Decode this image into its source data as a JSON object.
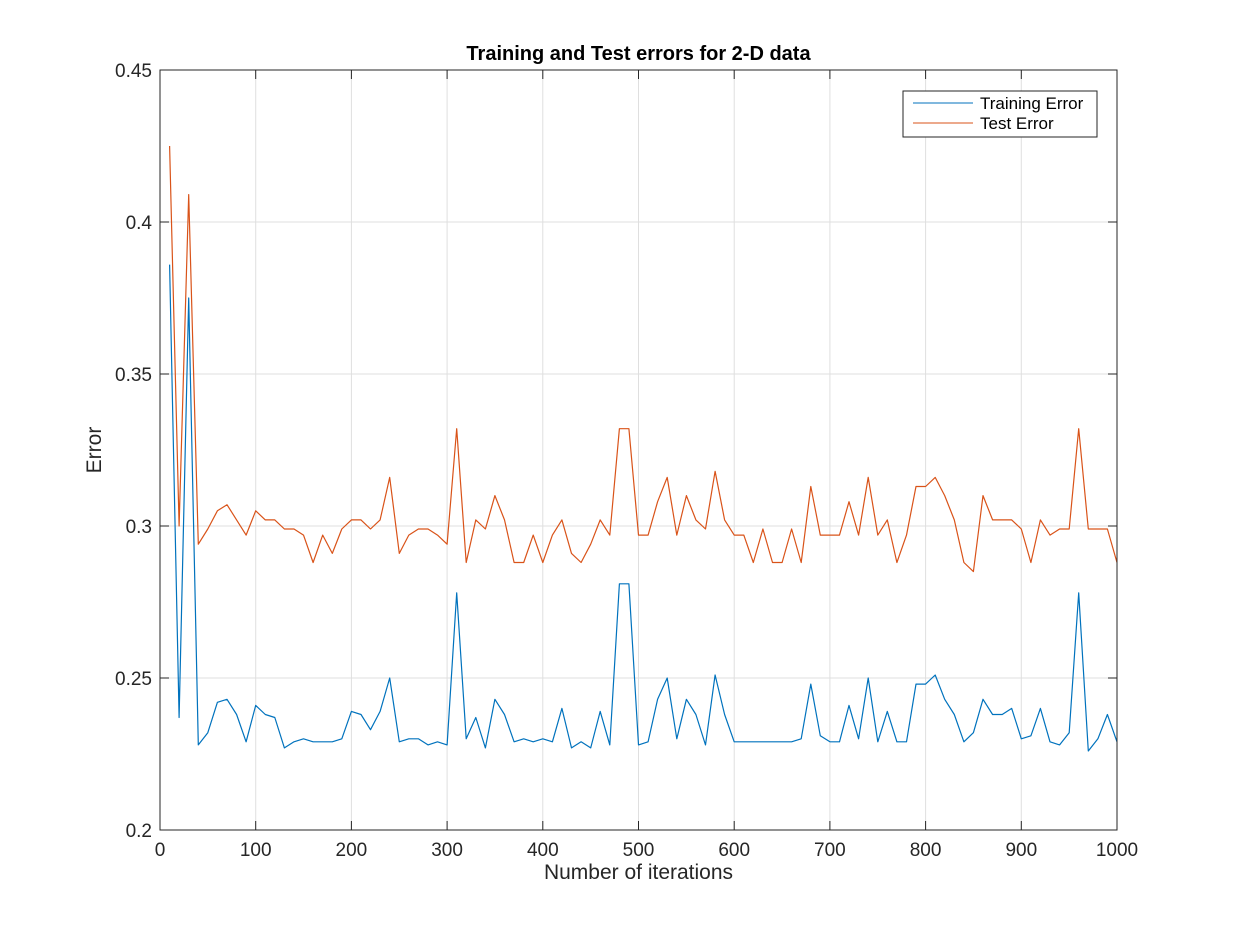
{
  "chart_data": {
    "type": "line",
    "title": "Training and Test errors for 2-D data",
    "xlabel": "Number of iterations",
    "ylabel": "Error",
    "xlim": [
      0,
      1000
    ],
    "ylim": [
      0.2,
      0.45
    ],
    "xticks": [
      0,
      100,
      200,
      300,
      400,
      500,
      600,
      700,
      800,
      900,
      1000
    ],
    "xtick_labels": [
      "0",
      "100",
      "200",
      "300",
      "400",
      "500",
      "600",
      "700",
      "800",
      "900",
      "1000"
    ],
    "yticks": [
      0.2,
      0.25,
      0.3,
      0.35,
      0.4,
      0.45
    ],
    "ytick_labels": [
      "0.2",
      "0.25",
      "0.3",
      "0.35",
      "0.4",
      "0.45"
    ],
    "grid": true,
    "legend_position": "top-right",
    "x": [
      10,
      20,
      30,
      40,
      50,
      60,
      70,
      80,
      90,
      100,
      110,
      120,
      130,
      140,
      150,
      160,
      170,
      180,
      190,
      200,
      210,
      220,
      230,
      240,
      250,
      260,
      270,
      280,
      290,
      300,
      310,
      320,
      330,
      340,
      350,
      360,
      370,
      380,
      390,
      400,
      410,
      420,
      430,
      440,
      450,
      460,
      470,
      480,
      490,
      500,
      510,
      520,
      530,
      540,
      550,
      560,
      570,
      580,
      590,
      600,
      610,
      620,
      630,
      640,
      650,
      660,
      670,
      680,
      690,
      700,
      710,
      720,
      730,
      740,
      750,
      760,
      770,
      780,
      790,
      800,
      810,
      820,
      830,
      840,
      850,
      860,
      870,
      880,
      890,
      900,
      910,
      920,
      930,
      940,
      950,
      960,
      970,
      980,
      990,
      1000
    ],
    "series": [
      {
        "name": "Training Error",
        "color": "#0072BD",
        "values": [
          0.386,
          0.237,
          0.375,
          0.228,
          0.232,
          0.242,
          0.243,
          0.238,
          0.229,
          0.241,
          0.238,
          0.237,
          0.227,
          0.229,
          0.23,
          0.229,
          0.229,
          0.229,
          0.23,
          0.239,
          0.238,
          0.233,
          0.239,
          0.25,
          0.229,
          0.23,
          0.23,
          0.228,
          0.229,
          0.228,
          0.278,
          0.23,
          0.237,
          0.227,
          0.243,
          0.238,
          0.229,
          0.23,
          0.229,
          0.23,
          0.229,
          0.24,
          0.227,
          0.229,
          0.227,
          0.239,
          0.228,
          0.281,
          0.281,
          0.228,
          0.229,
          0.243,
          0.25,
          0.23,
          0.243,
          0.238,
          0.228,
          0.251,
          0.238,
          0.229,
          0.229,
          0.229,
          0.229,
          0.229,
          0.229,
          0.229,
          0.23,
          0.248,
          0.231,
          0.229,
          0.229,
          0.241,
          0.23,
          0.25,
          0.229,
          0.239,
          0.229,
          0.229,
          0.248,
          0.248,
          0.251,
          0.243,
          0.238,
          0.229,
          0.232,
          0.243,
          0.238,
          0.238,
          0.24,
          0.23,
          0.231,
          0.24,
          0.229,
          0.228,
          0.232,
          0.278,
          0.226,
          0.23,
          0.238,
          0.229
        ]
      },
      {
        "name": "Test Error",
        "color": "#D95319",
        "values": [
          0.425,
          0.3,
          0.409,
          0.294,
          0.299,
          0.305,
          0.307,
          0.302,
          0.297,
          0.305,
          0.302,
          0.302,
          0.299,
          0.299,
          0.297,
          0.288,
          0.297,
          0.291,
          0.299,
          0.302,
          0.302,
          0.299,
          0.302,
          0.316,
          0.291,
          0.297,
          0.299,
          0.299,
          0.297,
          0.294,
          0.332,
          0.288,
          0.302,
          0.299,
          0.31,
          0.302,
          0.288,
          0.288,
          0.297,
          0.288,
          0.297,
          0.302,
          0.291,
          0.288,
          0.294,
          0.302,
          0.297,
          0.332,
          0.332,
          0.297,
          0.297,
          0.308,
          0.316,
          0.297,
          0.31,
          0.302,
          0.299,
          0.318,
          0.302,
          0.297,
          0.297,
          0.288,
          0.299,
          0.288,
          0.288,
          0.299,
          0.288,
          0.313,
          0.297,
          0.297,
          0.297,
          0.308,
          0.297,
          0.316,
          0.297,
          0.302,
          0.288,
          0.297,
          0.313,
          0.313,
          0.316,
          0.31,
          0.302,
          0.288,
          0.285,
          0.31,
          0.302,
          0.302,
          0.302,
          0.299,
          0.288,
          0.302,
          0.297,
          0.299,
          0.299,
          0.332,
          0.299,
          0.299,
          0.299,
          0.288
        ]
      }
    ]
  }
}
